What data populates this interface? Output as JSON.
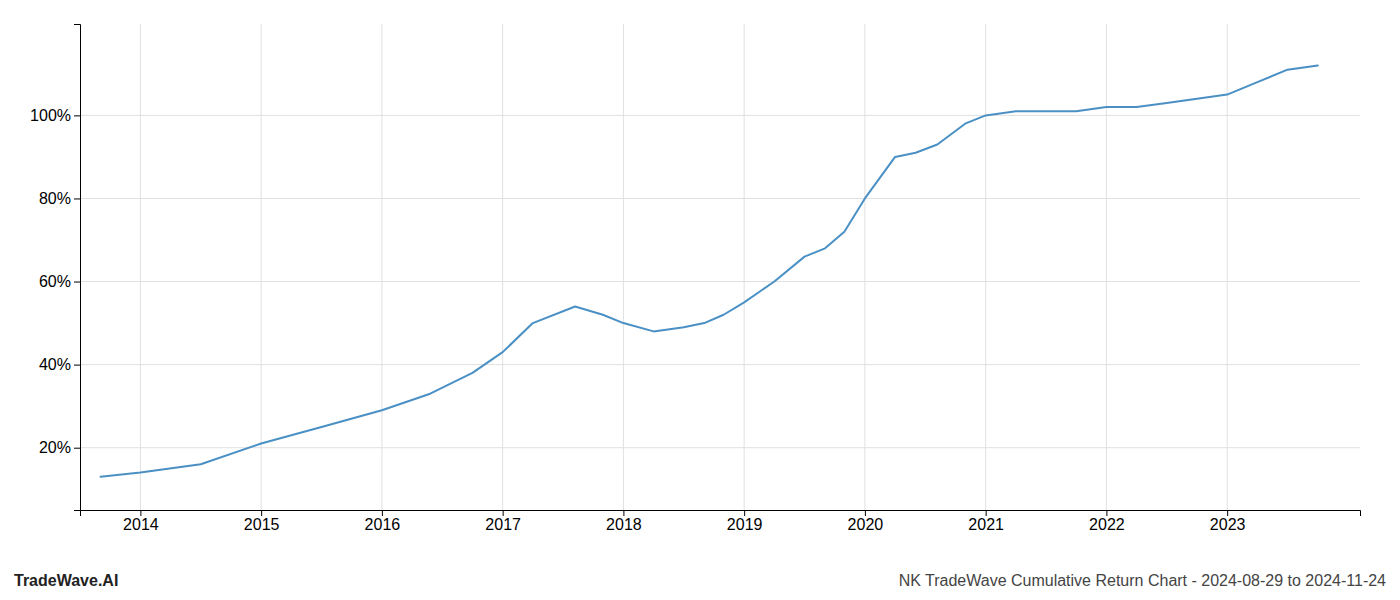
{
  "chart_data": {
    "type": "line",
    "title": "NK TradeWave Cumulative Return Chart - 2024-08-29 to 2024-11-24",
    "annotations": [
      "TradeWave.AI"
    ],
    "x": [
      2013.67,
      2014.0,
      2014.5,
      2015.0,
      2015.5,
      2016.0,
      2016.4,
      2016.75,
      2017.0,
      2017.25,
      2017.6,
      2017.83,
      2018.0,
      2018.25,
      2018.5,
      2018.67,
      2018.83,
      2019.0,
      2019.25,
      2019.5,
      2019.67,
      2019.83,
      2020.0,
      2020.25,
      2020.42,
      2020.6,
      2020.83,
      2021.0,
      2021.25,
      2021.5,
      2021.75,
      2022.0,
      2022.25,
      2022.5,
      2022.75,
      2023.0,
      2023.25,
      2023.5,
      2023.75
    ],
    "values": [
      13,
      14,
      16,
      21,
      25,
      29,
      33,
      38,
      43,
      50,
      54,
      52,
      50,
      48,
      49,
      50,
      52,
      55,
      60,
      66,
      68,
      72,
      80,
      90,
      91,
      93,
      98,
      100,
      101,
      101,
      101,
      102,
      102,
      103,
      104,
      105,
      108,
      111,
      112
    ],
    "color": "#4a90c4",
    "xlim": [
      2013.5,
      2024.1
    ],
    "ylim": [
      5,
      122
    ],
    "xticks": [
      2014,
      2015,
      2016,
      2017,
      2018,
      2019,
      2020,
      2021,
      2022,
      2023
    ],
    "yticks": [
      {
        "value": 20,
        "label": "20%"
      },
      {
        "value": 40,
        "label": "40%"
      },
      {
        "value": 60,
        "label": "60%"
      },
      {
        "value": 80,
        "label": "80%"
      },
      {
        "value": 100,
        "label": "100%"
      }
    ],
    "grid": true
  }
}
